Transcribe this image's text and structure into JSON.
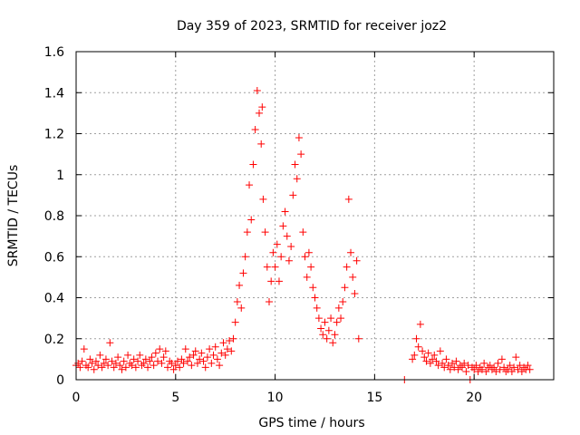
{
  "chart_data": {
    "type": "scatter",
    "title": "Day 359 of 2023, SRMTID for receiver joz2",
    "xlabel": "GPS time / hours",
    "ylabel": "SRMTID / TECUs",
    "xlim": [
      0,
      24
    ],
    "ylim": [
      0,
      1.6
    ],
    "xticks": [
      0,
      5,
      10,
      15,
      20
    ],
    "xtick_labels": [
      "0",
      "5",
      "10",
      "15",
      "20"
    ],
    "yticks": [
      0,
      0.2,
      0.4,
      0.6,
      0.8,
      1.0,
      1.2,
      1.4,
      1.6
    ],
    "ytick_labels": [
      "0",
      "0.2",
      "0.4",
      "0.6",
      "0.8",
      "1",
      "1.2",
      "1.4",
      "1.6"
    ],
    "grid": true,
    "marker_color": "#ff0000",
    "series": [
      {
        "name": "SRMTID",
        "marker": "plus",
        "points": [
          [
            0.0,
            0.07
          ],
          [
            0.1,
            0.08
          ],
          [
            0.2,
            0.06
          ],
          [
            0.3,
            0.09
          ],
          [
            0.4,
            0.15
          ],
          [
            0.5,
            0.07
          ],
          [
            0.6,
            0.06
          ],
          [
            0.7,
            0.1
          ],
          [
            0.8,
            0.08
          ],
          [
            0.9,
            0.05
          ],
          [
            1.0,
            0.09
          ],
          [
            1.1,
            0.07
          ],
          [
            1.2,
            0.12
          ],
          [
            1.3,
            0.06
          ],
          [
            1.4,
            0.08
          ],
          [
            1.5,
            0.1
          ],
          [
            1.6,
            0.07
          ],
          [
            1.7,
            0.18
          ],
          [
            1.8,
            0.09
          ],
          [
            1.9,
            0.06
          ],
          [
            2.0,
            0.08
          ],
          [
            2.1,
            0.11
          ],
          [
            2.2,
            0.07
          ],
          [
            2.3,
            0.05
          ],
          [
            2.4,
            0.09
          ],
          [
            2.5,
            0.06
          ],
          [
            2.6,
            0.12
          ],
          [
            2.7,
            0.08
          ],
          [
            2.8,
            0.07
          ],
          [
            2.9,
            0.1
          ],
          [
            3.0,
            0.06
          ],
          [
            3.1,
            0.09
          ],
          [
            3.2,
            0.12
          ],
          [
            3.3,
            0.07
          ],
          [
            3.4,
            0.08
          ],
          [
            3.5,
            0.1
          ],
          [
            3.6,
            0.06
          ],
          [
            3.7,
            0.09
          ],
          [
            3.8,
            0.11
          ],
          [
            3.9,
            0.07
          ],
          [
            4.0,
            0.13
          ],
          [
            4.1,
            0.09
          ],
          [
            4.2,
            0.15
          ],
          [
            4.3,
            0.08
          ],
          [
            4.4,
            0.11
          ],
          [
            4.5,
            0.14
          ],
          [
            4.6,
            0.06
          ],
          [
            4.7,
            0.09
          ],
          [
            4.8,
            0.08
          ],
          [
            4.9,
            0.05
          ],
          [
            5.0,
            0.07
          ],
          [
            5.1,
            0.09
          ],
          [
            5.2,
            0.06
          ],
          [
            5.3,
            0.1
          ],
          [
            5.4,
            0.08
          ],
          [
            5.5,
            0.15
          ],
          [
            5.6,
            0.09
          ],
          [
            5.7,
            0.11
          ],
          [
            5.8,
            0.07
          ],
          [
            5.9,
            0.12
          ],
          [
            6.0,
            0.14
          ],
          [
            6.1,
            0.08
          ],
          [
            6.2,
            0.1
          ],
          [
            6.3,
            0.13
          ],
          [
            6.4,
            0.09
          ],
          [
            6.5,
            0.06
          ],
          [
            6.6,
            0.11
          ],
          [
            6.7,
            0.15
          ],
          [
            6.8,
            0.08
          ],
          [
            6.9,
            0.12
          ],
          [
            7.0,
            0.16
          ],
          [
            7.1,
            0.1
          ],
          [
            7.2,
            0.07
          ],
          [
            7.3,
            0.13
          ],
          [
            7.4,
            0.18
          ],
          [
            7.5,
            0.12
          ],
          [
            7.6,
            0.15
          ],
          [
            7.7,
            0.19
          ],
          [
            7.8,
            0.14
          ],
          [
            7.9,
            0.2
          ],
          [
            8.0,
            0.28
          ],
          [
            8.1,
            0.38
          ],
          [
            8.2,
            0.46
          ],
          [
            8.3,
            0.35
          ],
          [
            8.4,
            0.52
          ],
          [
            8.5,
            0.6
          ],
          [
            8.6,
            0.72
          ],
          [
            8.7,
            0.95
          ],
          [
            8.8,
            0.78
          ],
          [
            8.9,
            1.05
          ],
          [
            9.0,
            1.22
          ],
          [
            9.1,
            1.41
          ],
          [
            9.2,
            1.3
          ],
          [
            9.3,
            1.15
          ],
          [
            9.35,
            1.33
          ],
          [
            9.4,
            0.88
          ],
          [
            9.5,
            0.72
          ],
          [
            9.6,
            0.55
          ],
          [
            9.7,
            0.38
          ],
          [
            9.8,
            0.48
          ],
          [
            9.9,
            0.62
          ],
          [
            10.0,
            0.55
          ],
          [
            10.1,
            0.66
          ],
          [
            10.2,
            0.48
          ],
          [
            10.3,
            0.6
          ],
          [
            10.4,
            0.75
          ],
          [
            10.5,
            0.82
          ],
          [
            10.6,
            0.7
          ],
          [
            10.7,
            0.58
          ],
          [
            10.8,
            0.65
          ],
          [
            10.9,
            0.9
          ],
          [
            11.0,
            1.05
          ],
          [
            11.1,
            0.98
          ],
          [
            11.2,
            1.18
          ],
          [
            11.3,
            1.1
          ],
          [
            11.4,
            0.72
          ],
          [
            11.5,
            0.6
          ],
          [
            11.6,
            0.5
          ],
          [
            11.7,
            0.62
          ],
          [
            11.8,
            0.55
          ],
          [
            11.9,
            0.45
          ],
          [
            12.0,
            0.4
          ],
          [
            12.1,
            0.35
          ],
          [
            12.2,
            0.3
          ],
          [
            12.3,
            0.25
          ],
          [
            12.4,
            0.22
          ],
          [
            12.5,
            0.28
          ],
          [
            12.6,
            0.2
          ],
          [
            12.7,
            0.24
          ],
          [
            12.8,
            0.3
          ],
          [
            12.9,
            0.18
          ],
          [
            13.0,
            0.22
          ],
          [
            13.1,
            0.28
          ],
          [
            13.2,
            0.35
          ],
          [
            13.3,
            0.3
          ],
          [
            13.4,
            0.38
          ],
          [
            13.5,
            0.45
          ],
          [
            13.6,
            0.55
          ],
          [
            13.7,
            0.88
          ],
          [
            13.8,
            0.62
          ],
          [
            13.9,
            0.5
          ],
          [
            14.0,
            0.42
          ],
          [
            14.1,
            0.58
          ],
          [
            14.2,
            0.2
          ],
          [
            16.5,
            0.0
          ],
          [
            16.9,
            0.1
          ],
          [
            17.0,
            0.12
          ],
          [
            17.1,
            0.2
          ],
          [
            17.2,
            0.16
          ],
          [
            17.3,
            0.27
          ],
          [
            17.4,
            0.14
          ],
          [
            17.5,
            0.11
          ],
          [
            17.6,
            0.09
          ],
          [
            17.7,
            0.13
          ],
          [
            17.8,
            0.08
          ],
          [
            17.9,
            0.1
          ],
          [
            18.0,
            0.12
          ],
          [
            18.1,
            0.09
          ],
          [
            18.2,
            0.07
          ],
          [
            18.3,
            0.14
          ],
          [
            18.4,
            0.08
          ],
          [
            18.5,
            0.06
          ],
          [
            18.6,
            0.1
          ],
          [
            18.7,
            0.07
          ],
          [
            18.8,
            0.05
          ],
          [
            18.9,
            0.08
          ],
          [
            19.0,
            0.06
          ],
          [
            19.1,
            0.09
          ],
          [
            19.2,
            0.05
          ],
          [
            19.3,
            0.07
          ],
          [
            19.4,
            0.06
          ],
          [
            19.5,
            0.08
          ],
          [
            19.6,
            0.04
          ],
          [
            19.7,
            0.07
          ],
          [
            19.8,
            0.0
          ],
          [
            19.9,
            0.06
          ],
          [
            20.0,
            0.05
          ],
          [
            20.1,
            0.07
          ],
          [
            20.2,
            0.04
          ],
          [
            20.3,
            0.06
          ],
          [
            20.4,
            0.05
          ],
          [
            20.5,
            0.08
          ],
          [
            20.6,
            0.04
          ],
          [
            20.7,
            0.06
          ],
          [
            20.8,
            0.07
          ],
          [
            20.9,
            0.05
          ],
          [
            21.0,
            0.06
          ],
          [
            21.1,
            0.04
          ],
          [
            21.2,
            0.08
          ],
          [
            21.3,
            0.05
          ],
          [
            21.4,
            0.1
          ],
          [
            21.5,
            0.06
          ],
          [
            21.6,
            0.04
          ],
          [
            21.7,
            0.05
          ],
          [
            21.8,
            0.07
          ],
          [
            21.9,
            0.04
          ],
          [
            22.0,
            0.06
          ],
          [
            22.1,
            0.11
          ],
          [
            22.2,
            0.05
          ],
          [
            22.3,
            0.07
          ],
          [
            22.4,
            0.04
          ],
          [
            22.5,
            0.06
          ],
          [
            22.6,
            0.05
          ],
          [
            22.7,
            0.07
          ],
          [
            22.8,
            0.05
          ]
        ]
      }
    ]
  }
}
